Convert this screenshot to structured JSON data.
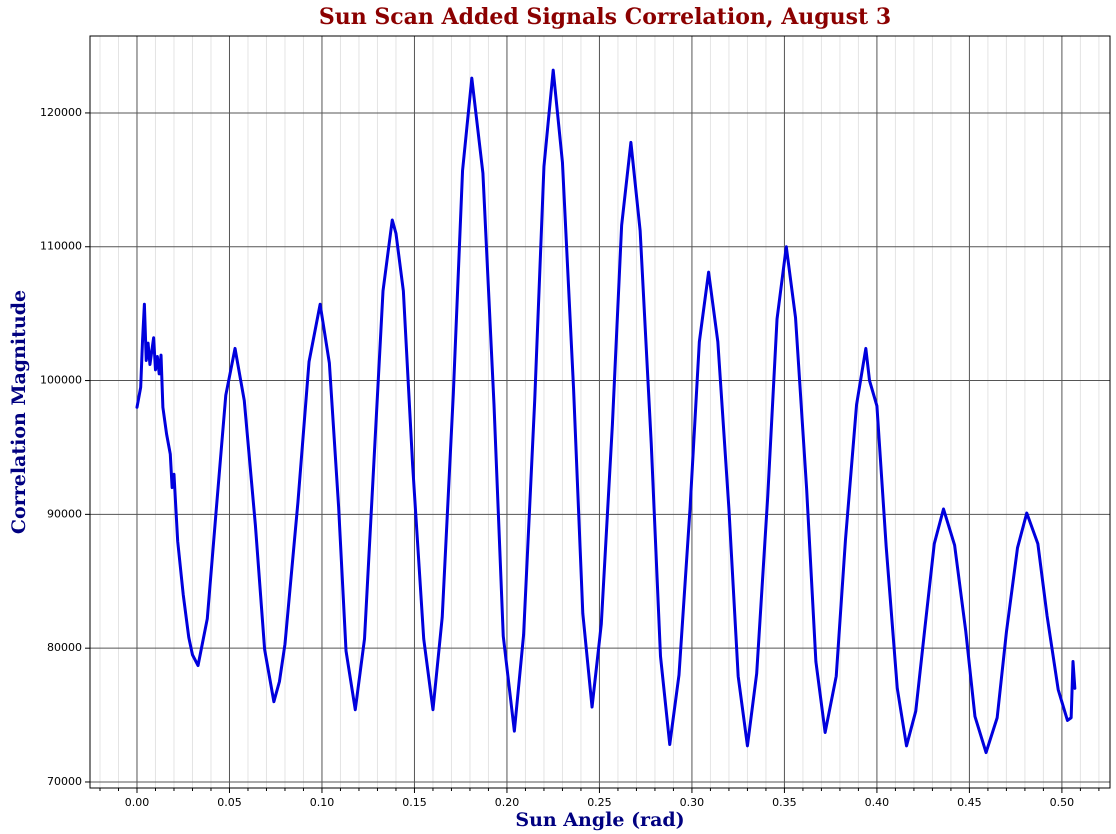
{
  "chart_data": {
    "type": "line",
    "title": "Sun Scan Added Signals Correlation, August 3",
    "x_label": "Sun Angle (rad)",
    "y_label": "Correlation Magnitude",
    "xlim": [
      -0.0254,
      0.526
    ],
    "ylim": [
      69550,
      125750
    ],
    "xticks": [
      {
        "value": 0,
        "label": "0.00"
      },
      {
        "value": 0.05,
        "label": "0.05"
      },
      {
        "value": 0.1,
        "label": "0.10"
      },
      {
        "value": 0.15,
        "label": "0.15"
      },
      {
        "value": 0.2,
        "label": "0.20"
      },
      {
        "value": 0.25,
        "label": "0.25"
      },
      {
        "value": 0.3,
        "label": "0.30"
      },
      {
        "value": 0.35,
        "label": "0.35"
      },
      {
        "value": 0.4,
        "label": "0.40"
      },
      {
        "value": 0.45,
        "label": "0.45"
      },
      {
        "value": 0.5,
        "label": "0.50"
      }
    ],
    "xminorticks": [
      -0.02,
      -0.01,
      0.01,
      0.02,
      0.03,
      0.04,
      0.06,
      0.07,
      0.08,
      0.09,
      0.11,
      0.12,
      0.13,
      0.14,
      0.16,
      0.17,
      0.18,
      0.19,
      0.21,
      0.22,
      0.23,
      0.24,
      0.26,
      0.27,
      0.28,
      0.29,
      0.31,
      0.32,
      0.33,
      0.34,
      0.36,
      0.37,
      0.38,
      0.39,
      0.41,
      0.42,
      0.43,
      0.44,
      0.46,
      0.47,
      0.48,
      0.49,
      0.51,
      0.52
    ],
    "yticks": [
      70000,
      80000,
      90000,
      100000,
      110000,
      120000
    ],
    "grid": true,
    "series": [
      {
        "color": "#0000dd",
        "x": [
          0.0,
          0.002,
          0.003,
          0.004,
          0.005,
          0.006,
          0.007,
          0.009,
          0.01,
          0.011,
          0.012,
          0.013,
          0.014,
          0.016,
          0.018,
          0.019,
          0.02,
          0.022,
          0.025,
          0.028,
          0.03,
          0.033,
          0.038,
          0.043,
          0.048,
          0.053,
          0.058,
          0.064,
          0.069,
          0.074,
          0.077,
          0.08,
          0.087,
          0.093,
          0.099,
          0.104,
          0.109,
          0.113,
          0.118,
          0.123,
          0.128,
          0.133,
          0.138,
          0.14,
          0.144,
          0.149,
          0.155,
          0.16,
          0.165,
          0.171,
          0.176,
          0.181,
          0.187,
          0.193,
          0.198,
          0.204,
          0.209,
          0.215,
          0.22,
          0.225,
          0.23,
          0.236,
          0.241,
          0.246,
          0.251,
          0.257,
          0.262,
          0.267,
          0.272,
          0.278,
          0.283,
          0.288,
          0.293,
          0.299,
          0.304,
          0.309,
          0.314,
          0.32,
          0.325,
          0.33,
          0.335,
          0.341,
          0.346,
          0.351,
          0.356,
          0.362,
          0.367,
          0.372,
          0.378,
          0.383,
          0.389,
          0.394,
          0.396,
          0.4,
          0.405,
          0.411,
          0.416,
          0.421,
          0.426,
          0.431,
          0.436,
          0.442,
          0.448,
          0.453,
          0.459,
          0.465,
          0.47,
          0.476,
          0.481,
          0.487,
          0.492,
          0.498,
          0.503,
          0.505,
          0.506,
          0.507
        ],
        "values": [
          98000,
          99500,
          103000,
          105700,
          101500,
          102800,
          101200,
          103200,
          100800,
          101800,
          100500,
          101900,
          98000,
          96000,
          94500,
          92000,
          93000,
          88000,
          84000,
          80800,
          79500,
          78700,
          82200,
          90600,
          98900,
          102400,
          98500,
          89200,
          79900,
          76000,
          77500,
          80300,
          90900,
          101400,
          105700,
          101300,
          90550,
          79800,
          75400,
          80700,
          93700,
          106700,
          112000,
          111000,
          106700,
          93700,
          80700,
          75400,
          82300,
          99000,
          115700,
          122600,
          115500,
          98200,
          80900,
          73800,
          81000,
          98500,
          116000,
          123200,
          116300,
          99400,
          82600,
          75600,
          81800,
          96700,
          111600,
          117800,
          111200,
          95300,
          79400,
          72800,
          78000,
          90500,
          102900,
          108100,
          102900,
          90400,
          77900,
          72700,
          78100,
          91400,
          104600,
          110000,
          104700,
          91900,
          79000,
          73700,
          77900,
          88100,
          98200,
          102400,
          100000,
          98100,
          87600,
          77000,
          72700,
          75300,
          81600,
          87800,
          90400,
          87700,
          81300,
          74900,
          72200,
          74800,
          81200,
          87500,
          90100,
          87800,
          82400,
          76900,
          74600,
          74800,
          79000,
          77000
        ]
      }
    ]
  }
}
